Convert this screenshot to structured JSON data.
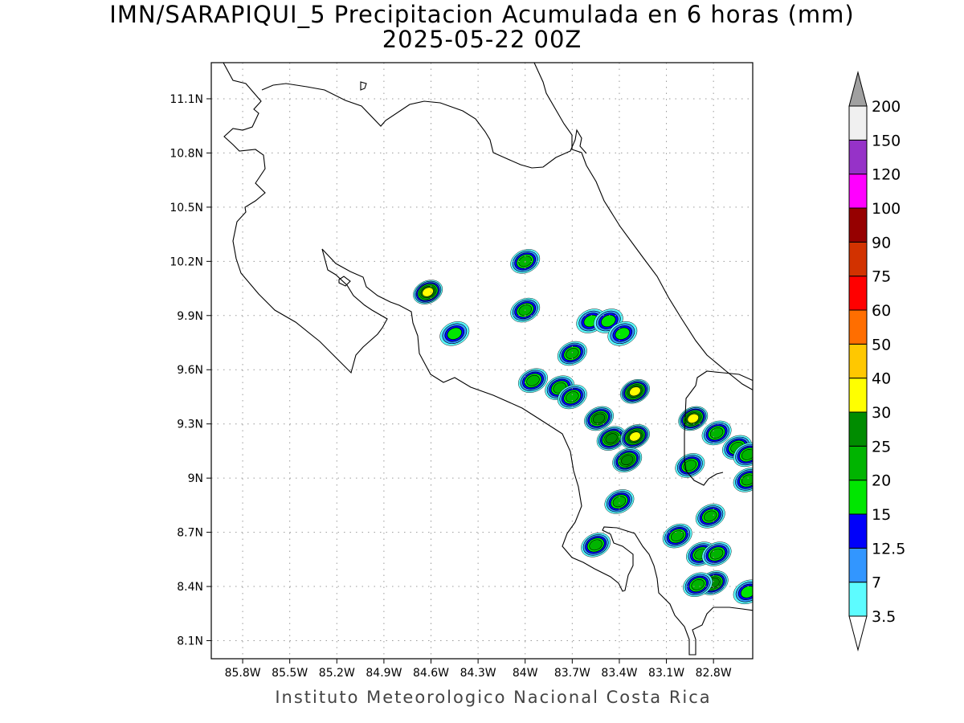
{
  "title": {
    "line1": "IMN/SARAPIQUI_5 Precipitacion Acumulada en 6 horas (mm)",
    "line2": "2025-05-22 00Z"
  },
  "credit": "Instituto Meteorologico Nacional Costa Rica",
  "map": {
    "extent": {
      "lon_min": -86.0,
      "lon_max": -82.55,
      "lat_min": 8.0,
      "lat_max": 11.3
    },
    "lat_ticks": [
      {
        "value": 11.1,
        "label": "11.1N"
      },
      {
        "value": 10.8,
        "label": "10.8N"
      },
      {
        "value": 10.5,
        "label": "10.5N"
      },
      {
        "value": 10.2,
        "label": "10.2N"
      },
      {
        "value": 9.9,
        "label": "9.9N"
      },
      {
        "value": 9.6,
        "label": "9.6N"
      },
      {
        "value": 9.3,
        "label": "9.3N"
      },
      {
        "value": 9.0,
        "label": "9N"
      },
      {
        "value": 8.7,
        "label": "8.7N"
      },
      {
        "value": 8.4,
        "label": "8.4N"
      },
      {
        "value": 8.1,
        "label": "8.1N"
      }
    ],
    "lon_ticks": [
      {
        "value": -85.8,
        "label": "85.8W"
      },
      {
        "value": -85.5,
        "label": "85.5W"
      },
      {
        "value": -85.2,
        "label": "85.2W"
      },
      {
        "value": -84.9,
        "label": "84.9W"
      },
      {
        "value": -84.6,
        "label": "84.6W"
      },
      {
        "value": -84.3,
        "label": "84.3W"
      },
      {
        "value": -84.0,
        "label": "84W"
      },
      {
        "value": -83.7,
        "label": "83.7W"
      },
      {
        "value": -83.4,
        "label": "83.4W"
      },
      {
        "value": -83.1,
        "label": "83.1W"
      },
      {
        "value": -82.8,
        "label": "82.8W"
      }
    ],
    "grid": "dotted"
  },
  "legend": {
    "levels": [
      {
        "label": "3.5",
        "color": "#ffffff"
      },
      {
        "label": "7",
        "color": "#5dfcff"
      },
      {
        "label": "12.5",
        "color": "#3296ff"
      },
      {
        "label": "15",
        "color": "#0000fa"
      },
      {
        "label": "20",
        "color": "#00e600"
      },
      {
        "label": "25",
        "color": "#00b400"
      },
      {
        "label": "30",
        "color": "#008c00"
      },
      {
        "label": "40",
        "color": "#ffff00"
      },
      {
        "label": "50",
        "color": "#ffc800"
      },
      {
        "label": "60",
        "color": "#ff6e00"
      },
      {
        "label": "75",
        "color": "#ff0000"
      },
      {
        "label": "90",
        "color": "#d23200"
      },
      {
        "label": "100",
        "color": "#960000"
      },
      {
        "label": "120",
        "color": "#ff00ff"
      },
      {
        "label": "150",
        "color": "#9632c8"
      },
      {
        "label": "200",
        "color": "#f0f0f0"
      }
    ],
    "top_arrow_color": "#a0a0a0",
    "bottom_arrow_color": "#ffffff"
  },
  "rain_cells": [
    {
      "lon": -84.62,
      "lat": 10.03,
      "peak": 40
    },
    {
      "lon": -84.0,
      "lat": 10.2,
      "peak": 25
    },
    {
      "lon": -84.0,
      "lat": 9.93,
      "peak": 25
    },
    {
      "lon": -84.45,
      "lat": 9.8,
      "peak": 20
    },
    {
      "lon": -83.58,
      "lat": 9.87,
      "peak": 20
    },
    {
      "lon": -83.47,
      "lat": 9.87,
      "peak": 20
    },
    {
      "lon": -83.38,
      "lat": 9.8,
      "peak": 20
    },
    {
      "lon": -83.7,
      "lat": 9.69,
      "peak": 25
    },
    {
      "lon": -83.95,
      "lat": 9.54,
      "peak": 25
    },
    {
      "lon": -83.78,
      "lat": 9.5,
      "peak": 25
    },
    {
      "lon": -83.7,
      "lat": 9.45,
      "peak": 25
    },
    {
      "lon": -83.53,
      "lat": 9.33,
      "peak": 30
    },
    {
      "lon": -83.45,
      "lat": 9.22,
      "peak": 30
    },
    {
      "lon": -83.3,
      "lat": 9.48,
      "peak": 40
    },
    {
      "lon": -83.3,
      "lat": 9.23,
      "peak": 40
    },
    {
      "lon": -83.35,
      "lat": 9.1,
      "peak": 30
    },
    {
      "lon": -82.93,
      "lat": 9.33,
      "peak": 40
    },
    {
      "lon": -82.78,
      "lat": 9.25,
      "peak": 25
    },
    {
      "lon": -82.65,
      "lat": 9.17,
      "peak": 25
    },
    {
      "lon": -82.58,
      "lat": 9.13,
      "peak": 25
    },
    {
      "lon": -82.95,
      "lat": 9.07,
      "peak": 25
    },
    {
      "lon": -82.58,
      "lat": 8.99,
      "peak": 25
    },
    {
      "lon": -83.4,
      "lat": 8.87,
      "peak": 25
    },
    {
      "lon": -83.55,
      "lat": 8.63,
      "peak": 25
    },
    {
      "lon": -83.03,
      "lat": 8.68,
      "peak": 25
    },
    {
      "lon": -82.82,
      "lat": 8.79,
      "peak": 25
    },
    {
      "lon": -82.88,
      "lat": 8.58,
      "peak": 25
    },
    {
      "lon": -82.78,
      "lat": 8.58,
      "peak": 25
    },
    {
      "lon": -82.8,
      "lat": 8.42,
      "peak": 30
    },
    {
      "lon": -82.9,
      "lat": 8.41,
      "peak": 25
    },
    {
      "lon": -82.58,
      "lat": 8.37,
      "peak": 20
    }
  ]
}
